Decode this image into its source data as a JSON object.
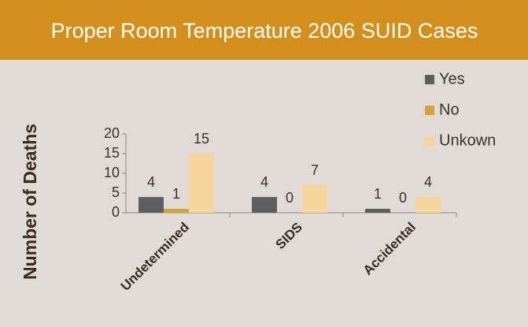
{
  "chart_data": {
    "type": "bar",
    "title": "Proper Room Temperature 2006 SUID Cases",
    "y_label": "Number of Deaths",
    "categories": [
      "Undetermined",
      "SIDS",
      "Accidental"
    ],
    "series": [
      {
        "name": "Yes",
        "color": "#5e5e5e",
        "values": [
          4,
          4,
          1
        ]
      },
      {
        "name": "No",
        "color": "#d4a33a",
        "values": [
          1,
          0,
          0
        ]
      },
      {
        "name": "Unkown",
        "color": "#f6d59b",
        "values": [
          15,
          7,
          4
        ]
      }
    ],
    "ylim": [
      0,
      20
    ],
    "yticks": [
      0,
      5,
      10,
      15,
      20
    ],
    "legend": "top-right"
  }
}
